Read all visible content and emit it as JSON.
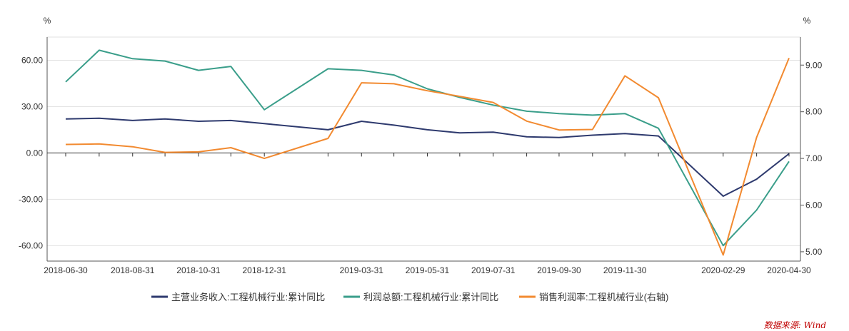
{
  "chart_data": {
    "type": "line",
    "left_axis": {
      "unit": "%",
      "ylim": [
        -70,
        75
      ],
      "ticks": [
        60,
        30,
        0,
        -30,
        -60
      ],
      "tick_labels": [
        "60.00",
        "30.00",
        "0.00",
        "-30.00",
        "-60.00"
      ]
    },
    "right_axis": {
      "unit": "%",
      "ylim": [
        4.8,
        9.6
      ],
      "ticks": [
        9,
        8,
        7,
        6,
        5
      ],
      "tick_labels": [
        "9.00",
        "8.00",
        "7.00",
        "6.00",
        "5.00"
      ]
    },
    "x_tick_labels": [
      "2018-06-30",
      "2018-08-31",
      "2018-10-31",
      "2018-12-31",
      "2019-03-31",
      "2019-05-31",
      "2019-07-31",
      "2019-09-30",
      "2019-11-30",
      "2020-02-29",
      "2020-04-30"
    ],
    "x": [
      "2018-06-30",
      "2018-07-31",
      "2018-08-31",
      "2018-09-30",
      "2018-10-31",
      "2018-11-30",
      "2018-12-31",
      "2019-02-28",
      "2019-03-31",
      "2019-04-30",
      "2019-05-31",
      "2019-06-30",
      "2019-07-31",
      "2019-08-31",
      "2019-09-30",
      "2019-10-31",
      "2019-11-30",
      "2019-12-31",
      "2020-02-29",
      "2020-03-31",
      "2020-04-30"
    ],
    "series": [
      {
        "name": "主营业务收入:工程机械行业:累计同比",
        "axis": "left",
        "color": "#2e3a6e",
        "values": [
          22,
          22.5,
          21,
          22,
          20.5,
          21,
          19,
          15,
          20.5,
          18,
          15,
          13,
          13.5,
          10.5,
          10,
          11.5,
          12.5,
          11,
          -28,
          -17,
          -0.5
        ]
      },
      {
        "name": "利润总额:工程机械行业:累计同比",
        "axis": "left",
        "color": "#3a9e8a",
        "values": [
          46,
          66.5,
          61,
          59.5,
          53.5,
          56,
          28,
          54.5,
          53.5,
          50.5,
          41.5,
          36,
          31,
          27,
          25.5,
          24.5,
          25.5,
          16,
          -60,
          -37,
          -5.5
        ]
      },
      {
        "name": "销售利润率:工程机械行业(右轴)",
        "axis": "right",
        "color": "#f28a30",
        "values": [
          7.3,
          7.31,
          7.25,
          7.13,
          7.14,
          7.23,
          7.0,
          7.43,
          8.62,
          8.6,
          8.45,
          8.33,
          8.2,
          7.8,
          7.61,
          7.62,
          8.77,
          8.3,
          4.93,
          7.45,
          9.15
        ]
      }
    ],
    "legend_position": "bottom",
    "grid": true
  },
  "source_note": "数据来源: Wind"
}
